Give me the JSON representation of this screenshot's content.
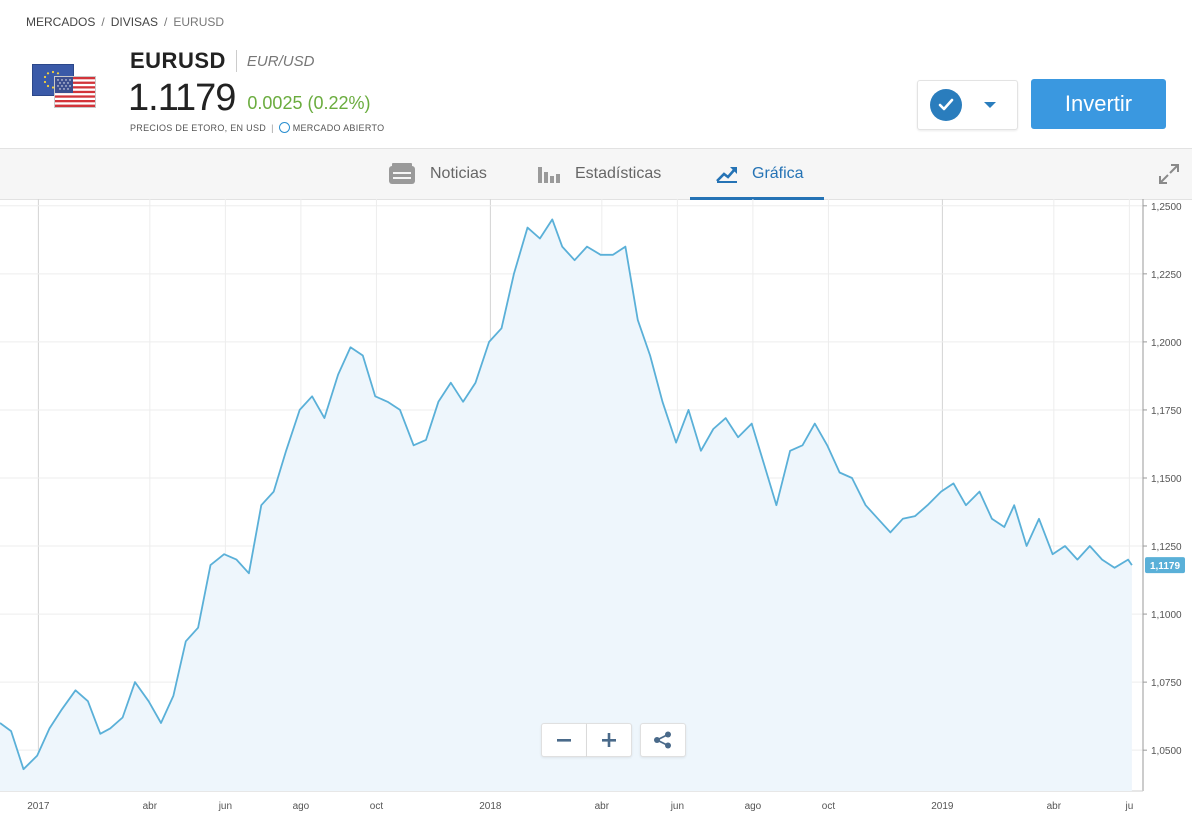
{
  "breadcrumb": {
    "items": [
      "MERCADOS",
      "DIVISAS"
    ],
    "current": "EURUSD"
  },
  "instrument": {
    "ticker": "EURUSD",
    "fullname": "EUR/USD",
    "price": "1.1179",
    "change": "0.0025 (0.22%)",
    "price_source": "PRECIOS DE ETORO, EN USD",
    "market_status": "MERCADO ABIERTO"
  },
  "actions": {
    "invest_label": "Invertir"
  },
  "tabs": [
    {
      "label": "Noticias",
      "icon": "news-icon"
    },
    {
      "label": "Estadísticas",
      "icon": "stats-icon"
    },
    {
      "label": "Gráfica",
      "icon": "chart-trend-icon",
      "active": true
    }
  ],
  "colors": {
    "accent": "#2573b5",
    "invest": "#3a98e0",
    "line": "#5ab0d8",
    "positive": "#6aac3e"
  },
  "chart_data": {
    "type": "area",
    "ylim": [
      1.035,
      1.2525
    ],
    "y_ticks": [
      "1,2500",
      "1,2250",
      "1,2000",
      "1,1750",
      "1,1500",
      "1,1250",
      "1,1000",
      "1,0750",
      "1,0500"
    ],
    "y_tick_values": [
      1.25,
      1.225,
      1.2,
      1.175,
      1.15,
      1.125,
      1.1,
      1.075,
      1.05
    ],
    "x_ticks": [
      "2017",
      "abr",
      "jun",
      "ago",
      "oct",
      "2018",
      "abr",
      "jun",
      "ago",
      "oct",
      "2019",
      "abr",
      "ju"
    ],
    "x_tick_dates": [
      "2017-01-01",
      "2017-04-01",
      "2017-06-01",
      "2017-08-01",
      "2017-10-01",
      "2018-01-01",
      "2018-04-01",
      "2018-06-01",
      "2018-08-01",
      "2018-10-01",
      "2019-01-01",
      "2019-04-01",
      "2019-06-01"
    ],
    "series": [
      {
        "points": [
          [
            "2016-12-01",
            1.06
          ],
          [
            "2016-12-10",
            1.057
          ],
          [
            "2016-12-20",
            1.043
          ],
          [
            "2016-12-31",
            1.048
          ],
          [
            "2017-01-10",
            1.058
          ],
          [
            "2017-01-20",
            1.065
          ],
          [
            "2017-01-31",
            1.072
          ],
          [
            "2017-02-10",
            1.068
          ],
          [
            "2017-02-20",
            1.056
          ],
          [
            "2017-02-28",
            1.058
          ],
          [
            "2017-03-10",
            1.062
          ],
          [
            "2017-03-20",
            1.075
          ],
          [
            "2017-03-31",
            1.068
          ],
          [
            "2017-04-10",
            1.06
          ],
          [
            "2017-04-20",
            1.07
          ],
          [
            "2017-04-30",
            1.09
          ],
          [
            "2017-05-10",
            1.095
          ],
          [
            "2017-05-20",
            1.118
          ],
          [
            "2017-05-31",
            1.122
          ],
          [
            "2017-06-10",
            1.12
          ],
          [
            "2017-06-20",
            1.115
          ],
          [
            "2017-06-30",
            1.14
          ],
          [
            "2017-07-10",
            1.145
          ],
          [
            "2017-07-20",
            1.16
          ],
          [
            "2017-07-31",
            1.175
          ],
          [
            "2017-08-10",
            1.18
          ],
          [
            "2017-08-20",
            1.172
          ],
          [
            "2017-08-31",
            1.188
          ],
          [
            "2017-09-10",
            1.198
          ],
          [
            "2017-09-20",
            1.195
          ],
          [
            "2017-09-30",
            1.18
          ],
          [
            "2017-10-10",
            1.178
          ],
          [
            "2017-10-20",
            1.175
          ],
          [
            "2017-10-31",
            1.162
          ],
          [
            "2017-11-10",
            1.164
          ],
          [
            "2017-11-20",
            1.178
          ],
          [
            "2017-11-30",
            1.185
          ],
          [
            "2017-12-10",
            1.178
          ],
          [
            "2017-12-20",
            1.185
          ],
          [
            "2017-12-31",
            1.2
          ],
          [
            "2018-01-10",
            1.205
          ],
          [
            "2018-01-20",
            1.225
          ],
          [
            "2018-01-31",
            1.242
          ],
          [
            "2018-02-10",
            1.238
          ],
          [
            "2018-02-20",
            1.245
          ],
          [
            "2018-02-28",
            1.235
          ],
          [
            "2018-03-10",
            1.23
          ],
          [
            "2018-03-20",
            1.235
          ],
          [
            "2018-03-31",
            1.232
          ],
          [
            "2018-04-10",
            1.232
          ],
          [
            "2018-04-20",
            1.235
          ],
          [
            "2018-04-30",
            1.208
          ],
          [
            "2018-05-10",
            1.195
          ],
          [
            "2018-05-20",
            1.178
          ],
          [
            "2018-05-31",
            1.163
          ],
          [
            "2018-06-10",
            1.175
          ],
          [
            "2018-06-20",
            1.16
          ],
          [
            "2018-06-30",
            1.168
          ],
          [
            "2018-07-10",
            1.172
          ],
          [
            "2018-07-20",
            1.165
          ],
          [
            "2018-07-31",
            1.17
          ],
          [
            "2018-08-10",
            1.155
          ],
          [
            "2018-08-20",
            1.14
          ],
          [
            "2018-08-31",
            1.16
          ],
          [
            "2018-09-10",
            1.162
          ],
          [
            "2018-09-20",
            1.17
          ],
          [
            "2018-09-30",
            1.162
          ],
          [
            "2018-10-10",
            1.152
          ],
          [
            "2018-10-20",
            1.15
          ],
          [
            "2018-10-31",
            1.14
          ],
          [
            "2018-11-10",
            1.135
          ],
          [
            "2018-11-20",
            1.13
          ],
          [
            "2018-11-30",
            1.135
          ],
          [
            "2018-12-10",
            1.136
          ],
          [
            "2018-12-20",
            1.14
          ],
          [
            "2018-12-31",
            1.145
          ],
          [
            "2019-01-10",
            1.148
          ],
          [
            "2019-01-20",
            1.14
          ],
          [
            "2019-01-31",
            1.145
          ],
          [
            "2019-02-10",
            1.135
          ],
          [
            "2019-02-20",
            1.132
          ],
          [
            "2019-02-28",
            1.14
          ],
          [
            "2019-03-10",
            1.125
          ],
          [
            "2019-03-20",
            1.135
          ],
          [
            "2019-03-31",
            1.122
          ],
          [
            "2019-04-10",
            1.125
          ],
          [
            "2019-04-20",
            1.12
          ],
          [
            "2019-04-30",
            1.125
          ],
          [
            "2019-05-10",
            1.12
          ],
          [
            "2019-05-20",
            1.117
          ],
          [
            "2019-05-31",
            1.12
          ],
          [
            "2019-06-03",
            1.118
          ]
        ]
      }
    ],
    "last_value_label": "1,1179",
    "grid": true
  }
}
